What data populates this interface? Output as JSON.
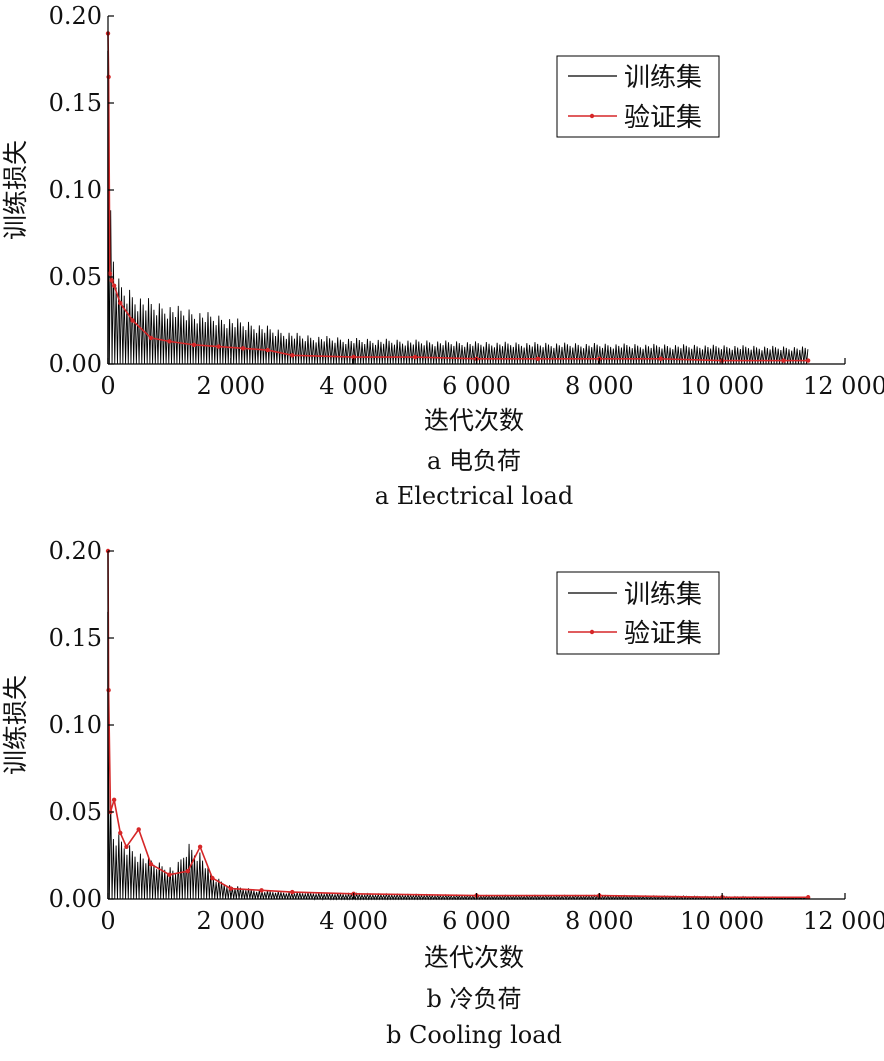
{
  "figure": {
    "captions": [
      {
        "cn": "a  电负荷",
        "en": "a  Electrical load"
      },
      {
        "cn": "b  冷负荷",
        "en": "b  Cooling load"
      }
    ]
  },
  "chart_data": [
    {
      "type": "line",
      "title": "",
      "xlabel": "迭代次数",
      "ylabel": "训练损失",
      "xlim": [
        0,
        12000
      ],
      "ylim": [
        0,
        0.2
      ],
      "xticks": [
        0,
        2000,
        4000,
        6000,
        8000,
        10000,
        12000
      ],
      "xtick_labels": [
        "0",
        "2 000",
        "4 000",
        "6 000",
        "8 000",
        "10 000",
        "12 000"
      ],
      "yticks": [
        0,
        0.05,
        0.1,
        0.15,
        0.2
      ],
      "ytick_labels": [
        "0.00",
        "0.05",
        "0.10",
        "0.15",
        "0.20"
      ],
      "legend_position": "top-right",
      "grid": false,
      "series": [
        {
          "name": "训练集",
          "color": "#000000",
          "style": "line",
          "envelope": {
            "x": [
              0,
              20,
              60,
              150,
              300,
              500,
              800,
              1200,
              1600,
              2000,
              2400,
              2800,
              3200,
              4000,
              5000,
              6000,
              8000,
              10000,
              11400
            ],
            "max": [
              0.18,
              0.12,
              0.075,
              0.05,
              0.045,
              0.04,
              0.036,
              0.033,
              0.03,
              0.027,
              0.024,
              0.02,
              0.017,
              0.015,
              0.014,
              0.013,
              0.012,
              0.011,
              0.01
            ],
            "min": [
              0.0,
              0.0,
              0.0,
              0.0,
              0.0,
              0.0,
              0.0,
              0.0,
              0.0,
              0.0,
              0.0,
              0.0,
              0.0,
              0.0,
              0.0,
              0.0,
              0.0,
              0.0,
              0.0
            ]
          }
        },
        {
          "name": "验证集",
          "color": "#d62728",
          "style": "line-with-points",
          "x": [
            0,
            10,
            30,
            60,
            100,
            200,
            400,
            700,
            1000,
            1400,
            1800,
            2200,
            2600,
            3000,
            4000,
            5000,
            6000,
            7000,
            8000,
            9000,
            10000,
            11000,
            11400
          ],
          "y": [
            0.19,
            0.165,
            0.052,
            0.048,
            0.045,
            0.035,
            0.025,
            0.015,
            0.013,
            0.011,
            0.01,
            0.009,
            0.008,
            0.005,
            0.004,
            0.004,
            0.003,
            0.003,
            0.003,
            0.003,
            0.002,
            0.002,
            0.002
          ]
        }
      ]
    },
    {
      "type": "line",
      "title": "",
      "xlabel": "迭代次数",
      "ylabel": "训练损失",
      "xlim": [
        0,
        12000
      ],
      "ylim": [
        0,
        0.2
      ],
      "xticks": [
        0,
        2000,
        4000,
        6000,
        8000,
        10000,
        12000
      ],
      "xtick_labels": [
        "0",
        "2 000",
        "4 000",
        "6 000",
        "8 000",
        "10 000",
        "12 000"
      ],
      "yticks": [
        0,
        0.05,
        0.1,
        0.15,
        0.2
      ],
      "ytick_labels": [
        "0.00",
        "0.05",
        "0.10",
        "0.15",
        "0.20"
      ],
      "legend_position": "top-right",
      "grid": false,
      "series": [
        {
          "name": "训练集",
          "color": "#000000",
          "style": "line",
          "envelope": {
            "x": [
              0,
              20,
              60,
              150,
              300,
              500,
              800,
              1100,
              1300,
              1500,
              1700,
              2000,
              2500,
              3000,
              4000,
              6000,
              8000,
              10000,
              11400
            ],
            "max": [
              0.165,
              0.09,
              0.04,
              0.038,
              0.033,
              0.028,
              0.022,
              0.018,
              0.033,
              0.028,
              0.014,
              0.008,
              0.005,
              0.004,
              0.003,
              0.002,
              0.002,
              0.0015,
              0.001
            ],
            "min": [
              0.0,
              0.0,
              0.0,
              0.0,
              0.0,
              0.0,
              0.0,
              0.0,
              0.0,
              0.0,
              0.0,
              0.0,
              0.0,
              0.0,
              0.0,
              0.0,
              0.0,
              0.0,
              0.0
            ]
          }
        },
        {
          "name": "验证集",
          "color": "#d62728",
          "style": "line-with-points",
          "x": [
            0,
            10,
            40,
            100,
            200,
            300,
            500,
            700,
            1000,
            1300,
            1500,
            1700,
            2000,
            2500,
            3000,
            4000,
            6000,
            8000,
            10000,
            11400
          ],
          "y": [
            0.2,
            0.12,
            0.05,
            0.057,
            0.038,
            0.03,
            0.04,
            0.02,
            0.014,
            0.016,
            0.03,
            0.012,
            0.006,
            0.005,
            0.004,
            0.003,
            0.002,
            0.002,
            0.001,
            0.001
          ]
        }
      ]
    }
  ]
}
